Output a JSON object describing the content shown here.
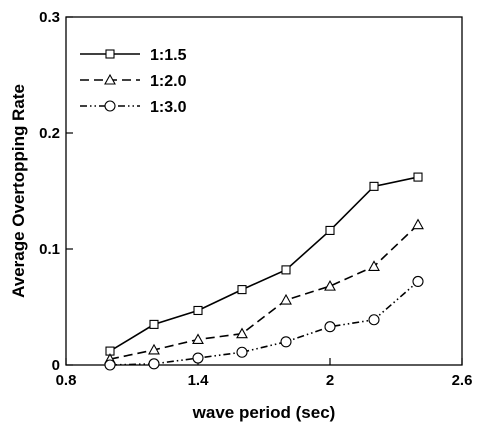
{
  "chart_data": {
    "type": "line",
    "title": "",
    "xlabel": "wave period (sec)",
    "ylabel": "Average Overtopping Rate",
    "xlim": [
      0.8,
      2.6
    ],
    "ylim": [
      0,
      0.3
    ],
    "xticks": [
      0.8,
      1.4,
      2,
      2.6
    ],
    "xtick_labels": [
      "0.8",
      "1.4",
      "2",
      "2.6"
    ],
    "yticks": [
      0,
      0.1,
      0.2,
      0.3
    ],
    "ytick_labels": [
      "0",
      "0.1",
      "0.2",
      "0.3"
    ],
    "grid": false,
    "legend_position": "top-left",
    "series": [
      {
        "name": "1:1.5",
        "marker": "square",
        "dash": "solid",
        "color": "#000000",
        "x": [
          1.0,
          1.2,
          1.4,
          1.6,
          1.8,
          2.0,
          2.2,
          2.4
        ],
        "y": [
          0.012,
          0.035,
          0.047,
          0.065,
          0.082,
          0.116,
          0.154,
          0.162
        ]
      },
      {
        "name": "1:2.0",
        "marker": "triangle",
        "dash": "dashed",
        "color": "#000000",
        "x": [
          1.0,
          1.2,
          1.4,
          1.6,
          1.8,
          2.0,
          2.2,
          2.4
        ],
        "y": [
          0.005,
          0.013,
          0.022,
          0.027,
          0.056,
          0.068,
          0.085,
          0.121
        ]
      },
      {
        "name": "1:3.0",
        "marker": "circle",
        "dash": "dash-dot-dot",
        "color": "#000000",
        "x": [
          1.0,
          1.2,
          1.4,
          1.6,
          1.8,
          2.0,
          2.2,
          2.4
        ],
        "y": [
          0.0,
          0.001,
          0.006,
          0.011,
          0.02,
          0.033,
          0.039,
          0.072
        ]
      }
    ]
  }
}
